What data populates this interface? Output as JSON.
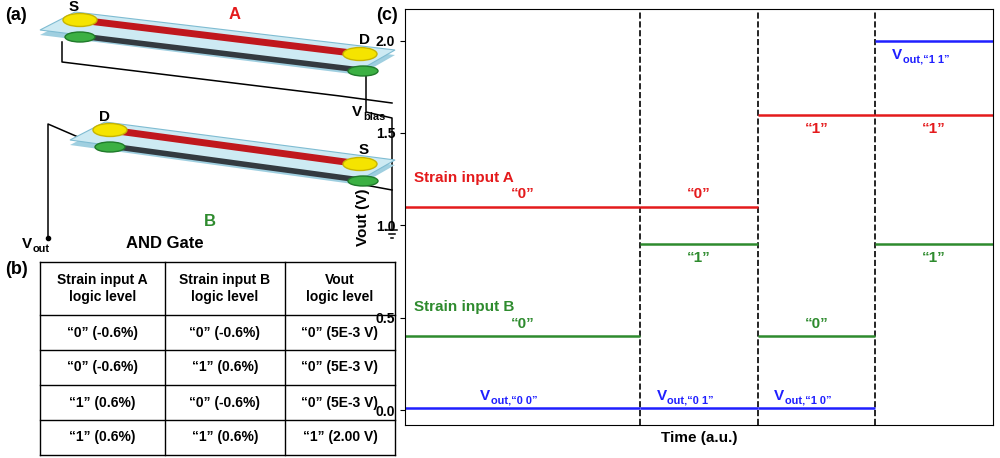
{
  "diagram": {
    "label": "(a)",
    "title": "AND Gate",
    "devices": [
      {
        "name": "A",
        "color": "#e41a1c",
        "left": "S",
        "right": "D"
      },
      {
        "name": "B",
        "color": "#2e8b2e",
        "left": "D",
        "right": "S"
      }
    ],
    "terminals": [
      {
        "text": "V",
        "sub": "bias"
      },
      {
        "text": "V",
        "sub": "out"
      }
    ]
  },
  "table": {
    "label": "(b)",
    "header": [
      "Strain input A\nlogic level",
      "Strain input B\nlogic level",
      "Vout\nlogic level"
    ],
    "rows": [
      [
        "“0” (-0.6%)",
        "“0” (-0.6%)",
        "“0” (5E-3 V)"
      ],
      [
        "“0” (-0.6%)",
        "“1” (0.6%)",
        "“0” (5E-3 V)"
      ],
      [
        "“1” (0.6%)",
        "“0” (-0.6%)",
        "“0” (5E-3 V)"
      ],
      [
        "“1” (0.6%)",
        "“1” (0.6%)",
        "“1” (2.00 V)"
      ]
    ]
  },
  "chart_data": {
    "type": "step",
    "label": "(c)",
    "x_label": "Time (a.u.)",
    "y_label": "Vout (V)",
    "segments": [
      0,
      2,
      3,
      4,
      5
    ],
    "xlim": [
      0,
      5
    ],
    "ylim": [
      -0.08,
      2.17
    ],
    "yticks": [
      {
        "value": 0,
        "label": "0.0"
      },
      {
        "value": 0.5,
        "label": "0.5"
      },
      {
        "value": 1,
        "label": "1.0"
      },
      {
        "value": 1.5,
        "label": "1.5"
      },
      {
        "value": 2,
        "label": "2.0"
      }
    ],
    "tick_labels": "y",
    "grid": false,
    "series": [
      {
        "name": "Strain input A",
        "color": "#e41a1c",
        "values": [
          1.1,
          1.1,
          1.6,
          1.6
        ],
        "level_labels": [
          "“0”",
          "“0”",
          "“1”",
          "“1”"
        ]
      },
      {
        "name": "Strain input B",
        "color": "#2e8b2e",
        "values": [
          0.4,
          0.9,
          0.4,
          0.9
        ],
        "level_labels": [
          "“0”",
          "“1”",
          "“0”",
          "“1”"
        ]
      },
      {
        "color": "#1f1fff",
        "values": [
          0.01,
          0.01,
          0.01,
          2.0
        ],
        "level_labels": [
          {
            "text": "V",
            "sub": "out,“0 0”"
          },
          {
            "text": "V",
            "sub": "out,“0 1”"
          },
          {
            "text": "V",
            "sub": "out,“1 0”"
          },
          {
            "text": "V",
            "sub": "out,“1 1”"
          }
        ]
      }
    ]
  }
}
